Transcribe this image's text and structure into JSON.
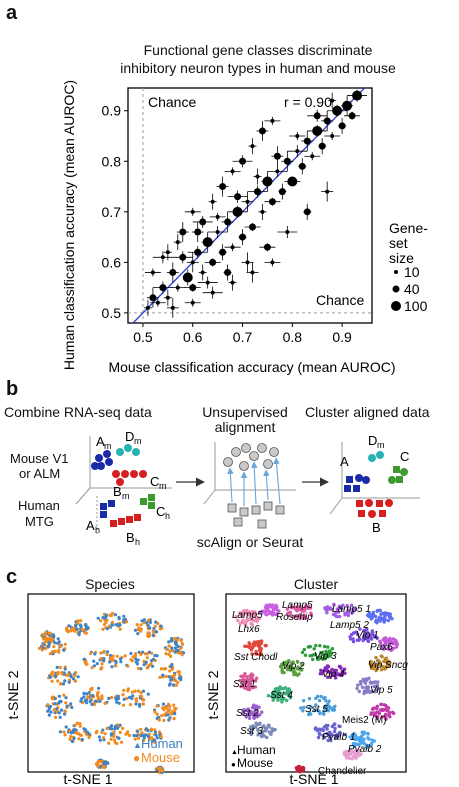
{
  "panel_a": {
    "label": "a",
    "title_line1": "Functional gene classes discriminate",
    "title_line2": "inhibitory neuron types in human and mouse",
    "chart_data": {
      "type": "scatter",
      "xlabel": "Mouse classification accuracy (mean AUROC)",
      "ylabel": "Human classification accuracy (mean AUROC)",
      "xlim": [
        0.47,
        0.96
      ],
      "ylim": [
        0.48,
        0.945
      ],
      "x_ticks": [
        "0.5",
        "0.6",
        "0.7",
        "0.8",
        "0.9"
      ],
      "y_ticks": [
        "0.5",
        "0.6",
        "0.7",
        "0.8",
        "0.9"
      ],
      "x_tick_values": [
        0.5,
        0.6,
        0.7,
        0.8,
        0.9
      ],
      "y_tick_values": [
        0.5,
        0.6,
        0.7,
        0.8,
        0.9
      ],
      "chance_top_label": "Chance",
      "chance_bottom_label": "Chance",
      "correlation_label": "r = 0.90",
      "identity_line_color": "#2b3bd6",
      "chance_line_color": "#9a9a9a",
      "point_color": "#000000",
      "legend_title_lines": [
        "Gene-",
        "set",
        "size"
      ],
      "legend_entries": [
        {
          "label": "10",
          "value": 10
        },
        {
          "label": "40",
          "value": 40
        },
        {
          "label": "100",
          "value": 100
        }
      ],
      "points": [
        [
          0.51,
          0.51,
          10
        ],
        [
          0.52,
          0.53,
          40
        ],
        [
          0.53,
          0.52,
          10
        ],
        [
          0.54,
          0.55,
          40
        ],
        [
          0.55,
          0.53,
          10
        ],
        [
          0.56,
          0.58,
          40
        ],
        [
          0.57,
          0.55,
          10
        ],
        [
          0.58,
          0.61,
          40
        ],
        [
          0.59,
          0.57,
          100
        ],
        [
          0.6,
          0.6,
          10
        ],
        [
          0.6,
          0.55,
          40
        ],
        [
          0.61,
          0.62,
          40
        ],
        [
          0.62,
          0.58,
          10
        ],
        [
          0.63,
          0.64,
          100
        ],
        [
          0.64,
          0.6,
          40
        ],
        [
          0.65,
          0.66,
          10
        ],
        [
          0.66,
          0.62,
          40
        ],
        [
          0.67,
          0.68,
          40
        ],
        [
          0.68,
          0.63,
          10
        ],
        [
          0.69,
          0.7,
          100
        ],
        [
          0.7,
          0.65,
          40
        ],
        [
          0.71,
          0.72,
          10
        ],
        [
          0.72,
          0.67,
          40
        ],
        [
          0.73,
          0.74,
          40
        ],
        [
          0.74,
          0.7,
          10
        ],
        [
          0.75,
          0.76,
          100
        ],
        [
          0.76,
          0.72,
          40
        ],
        [
          0.77,
          0.78,
          10
        ],
        [
          0.78,
          0.74,
          40
        ],
        [
          0.79,
          0.8,
          40
        ],
        [
          0.8,
          0.76,
          100
        ],
        [
          0.81,
          0.82,
          10
        ],
        [
          0.82,
          0.79,
          40
        ],
        [
          0.83,
          0.84,
          40
        ],
        [
          0.84,
          0.81,
          10
        ],
        [
          0.85,
          0.86,
          100
        ],
        [
          0.86,
          0.83,
          40
        ],
        [
          0.87,
          0.88,
          40
        ],
        [
          0.88,
          0.85,
          10
        ],
        [
          0.89,
          0.9,
          100
        ],
        [
          0.9,
          0.87,
          40
        ],
        [
          0.91,
          0.91,
          100
        ],
        [
          0.92,
          0.89,
          40
        ],
        [
          0.93,
          0.93,
          100
        ],
        [
          0.55,
          0.62,
          10
        ],
        [
          0.58,
          0.66,
          40
        ],
        [
          0.6,
          0.7,
          10
        ],
        [
          0.62,
          0.68,
          40
        ],
        [
          0.64,
          0.72,
          10
        ],
        [
          0.66,
          0.75,
          40
        ],
        [
          0.68,
          0.78,
          10
        ],
        [
          0.7,
          0.8,
          40
        ],
        [
          0.72,
          0.83,
          10
        ],
        [
          0.74,
          0.86,
          40
        ],
        [
          0.76,
          0.88,
          10
        ],
        [
          0.63,
          0.56,
          10
        ],
        [
          0.67,
          0.58,
          40
        ],
        [
          0.71,
          0.6,
          10
        ],
        [
          0.75,
          0.63,
          40
        ],
        [
          0.79,
          0.66,
          10
        ],
        [
          0.83,
          0.7,
          40
        ],
        [
          0.87,
          0.74,
          10
        ],
        [
          0.52,
          0.58,
          10
        ],
        [
          0.54,
          0.61,
          10
        ],
        [
          0.57,
          0.64,
          10
        ],
        [
          0.61,
          0.66,
          40
        ],
        [
          0.65,
          0.69,
          10
        ],
        [
          0.69,
          0.73,
          40
        ],
        [
          0.73,
          0.77,
          10
        ],
        [
          0.77,
          0.81,
          40
        ],
        [
          0.81,
          0.85,
          10
        ],
        [
          0.85,
          0.89,
          40
        ],
        [
          0.88,
          0.92,
          10
        ],
        [
          0.56,
          0.51,
          10
        ],
        [
          0.6,
          0.52,
          10
        ],
        [
          0.64,
          0.54,
          10
        ],
        [
          0.68,
          0.56,
          10
        ],
        [
          0.72,
          0.58,
          10
        ],
        [
          0.76,
          0.6,
          10
        ]
      ]
    }
  },
  "panel_b": {
    "label": "b",
    "col1_title": "Combine RNA-seq data",
    "col2_title_line1": "Unsupervised",
    "col2_title_line2": "alignment",
    "col3_title": "Cluster aligned data",
    "mouse_label_line1": "Mouse V1",
    "mouse_label_line2": "or ALM",
    "human_label_line1": "Human",
    "human_label_line2": "MTG",
    "cluster_labels": {
      "A": "A",
      "B": "B",
      "C": "C",
      "D": "D",
      "sub_m": "m",
      "sub_h": "h"
    },
    "method_label": "scAlign or Seurat",
    "colors": {
      "blue": "#1a2ba8",
      "red": "#d61f1f",
      "green": "#3e9a2e",
      "teal": "#27b3b3",
      "gray": "#b5b5b5",
      "arrow": "#6aa7d8"
    }
  },
  "panel_c": {
    "label": "c",
    "species_title": "Species",
    "cluster_title": "Cluster",
    "xlabel": "t-SNE 1",
    "ylabel": "t-SNE 2",
    "legend_human": "Human",
    "legend_mouse": "Mouse",
    "color_human": "#3d83c7",
    "color_mouse": "#f28a1e",
    "cluster_names": [
      "Lamp5",
      "Lhx6",
      "Lamp5",
      "Rosehip",
      "Lamp5 1",
      "Lamp5 2",
      "Vip 1",
      "Pax6",
      "Sst Chodl",
      "Vip 3",
      "Vip Sncg",
      "Vip 2",
      "Vip 4",
      "Sst 1",
      "Sst 4",
      "Vip 5",
      "Sst 2",
      "Sst 5",
      "Meis2 (M)",
      "Sst 3",
      "Pvalb 1",
      "Pvalb 2",
      "Chandelier"
    ],
    "cluster_legend_human": "Human",
    "cluster_legend_mouse": "Mouse"
  }
}
